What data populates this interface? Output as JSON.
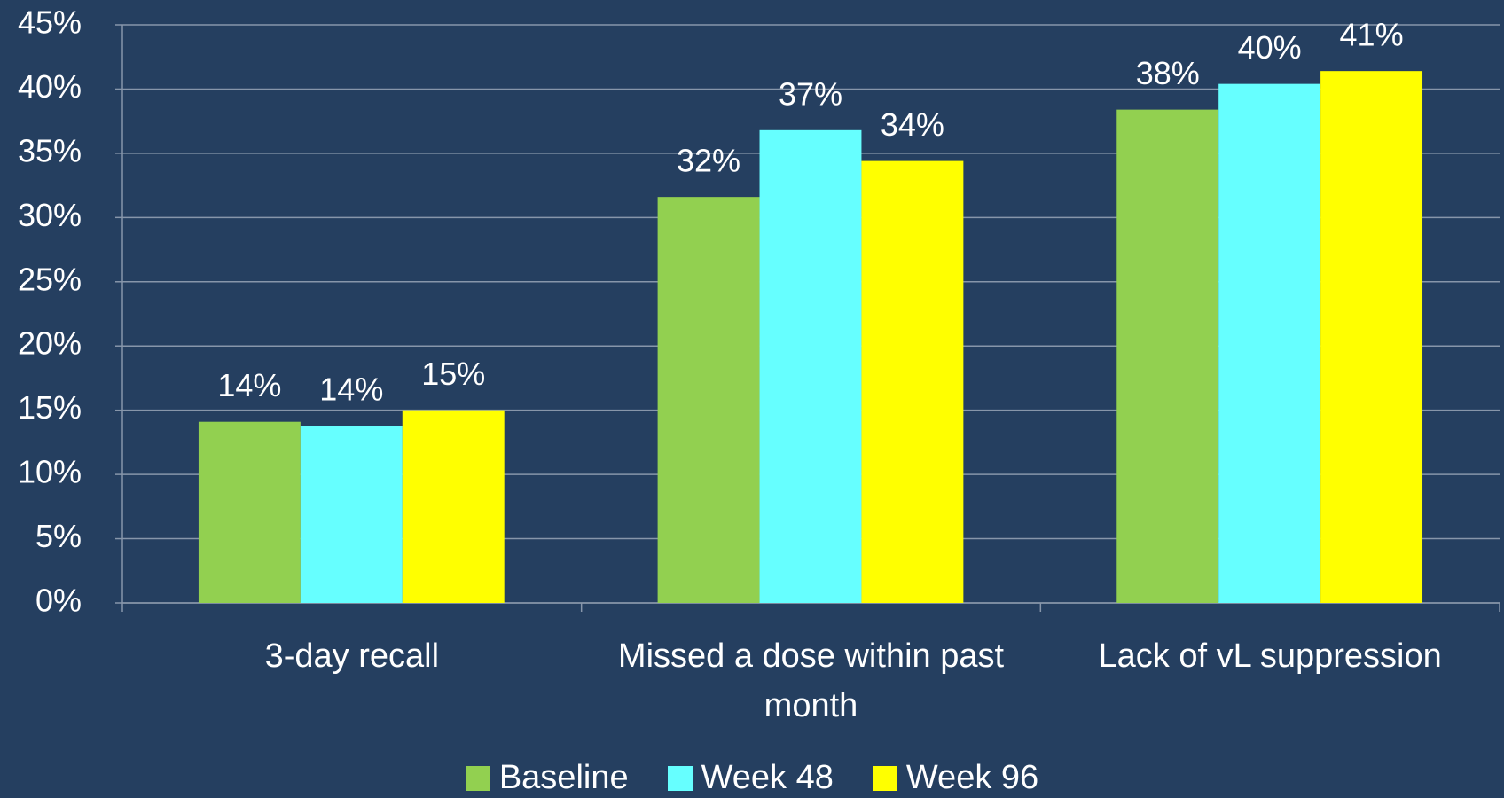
{
  "chart_data": {
    "type": "bar",
    "categories": [
      "3-day recall",
      "Missed a dose within past month",
      "Lack of vL suppression"
    ],
    "series": [
      {
        "name": "Baseline",
        "color": "#92d050",
        "values": [
          14.1,
          31.6,
          38.4
        ],
        "value_labels": [
          "14%",
          "32%",
          "38%"
        ]
      },
      {
        "name": "Week 48",
        "color": "#66ffff",
        "values": [
          13.8,
          36.8,
          40.4
        ],
        "value_labels": [
          "14%",
          "37%",
          "40%"
        ]
      },
      {
        "name": "Week 96",
        "color": "#ffff00",
        "values": [
          15.0,
          34.4,
          41.4
        ],
        "value_labels": [
          "15%",
          "34%",
          "41%"
        ]
      }
    ],
    "ylim": [
      0,
      45
    ],
    "yticks": [
      {
        "value": 0,
        "label": "0%"
      },
      {
        "value": 5,
        "label": "5%"
      },
      {
        "value": 10,
        "label": "10%"
      },
      {
        "value": 15,
        "label": "15%"
      },
      {
        "value": 20,
        "label": "20%"
      },
      {
        "value": 25,
        "label": "25%"
      },
      {
        "value": 30,
        "label": "30%"
      },
      {
        "value": 35,
        "label": "35%"
      },
      {
        "value": 40,
        "label": "40%"
      },
      {
        "value": 45,
        "label": "45%"
      }
    ],
    "grid": true,
    "legend": "bottom"
  }
}
